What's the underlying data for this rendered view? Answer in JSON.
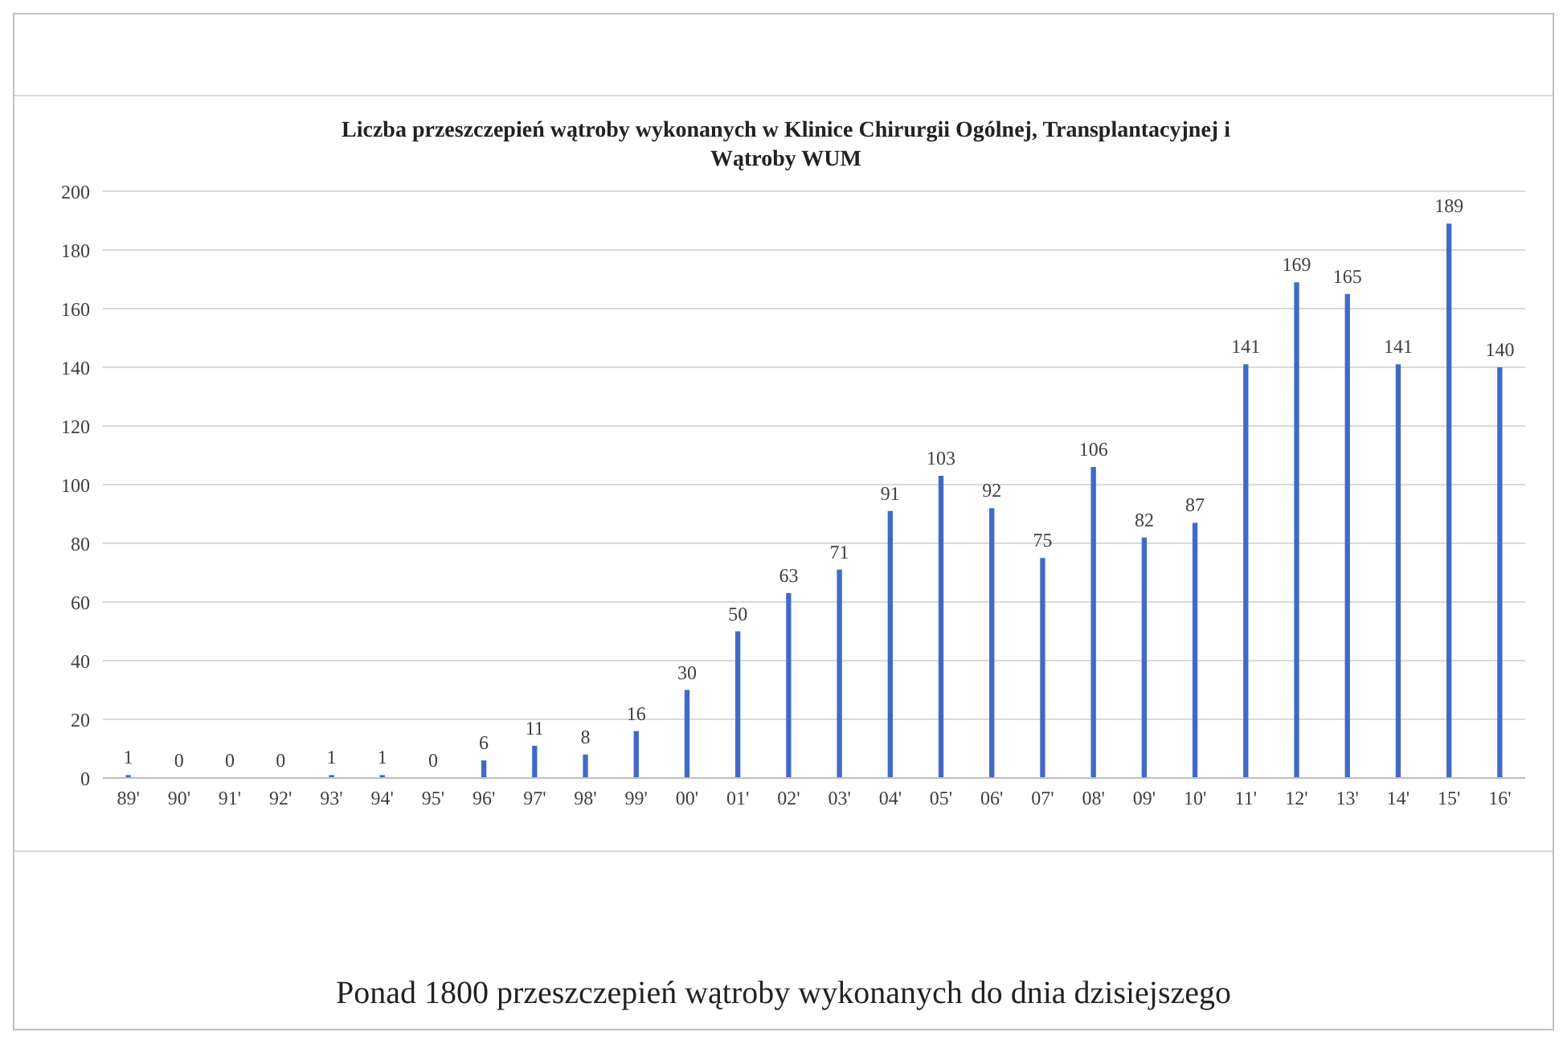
{
  "chart_data": {
    "type": "bar",
    "title": "Liczba przeszczepień wątroby wykonanych  w Klinice Chirurgii Ogólnej, Transplantacyjnej  i Wątroby WUM",
    "categories": [
      "89'",
      "90'",
      "91'",
      "92'",
      "93'",
      "94'",
      "95'",
      "96'",
      "97'",
      "98'",
      "99'",
      "00'",
      "01'",
      "02'",
      "03'",
      "04'",
      "05'",
      "06'",
      "07'",
      "08'",
      "09'",
      "10'",
      "11'",
      "12'",
      "13'",
      "14'",
      "15'",
      "16'"
    ],
    "values": [
      1,
      0,
      0,
      0,
      1,
      1,
      0,
      6,
      11,
      8,
      16,
      30,
      50,
      63,
      71,
      91,
      103,
      92,
      75,
      106,
      82,
      87,
      141,
      169,
      165,
      141,
      189,
      140
    ],
    "color": "#4169c6",
    "ylim": [
      0,
      200
    ],
    "yticks": [
      0,
      20,
      40,
      60,
      80,
      100,
      120,
      140,
      160,
      180,
      200
    ],
    "grid": "y",
    "data_labels": true,
    "annotations": [
      "Ponad 1800 przeszczepień wątroby wykonanych do dnia dzisiejszego"
    ]
  }
}
